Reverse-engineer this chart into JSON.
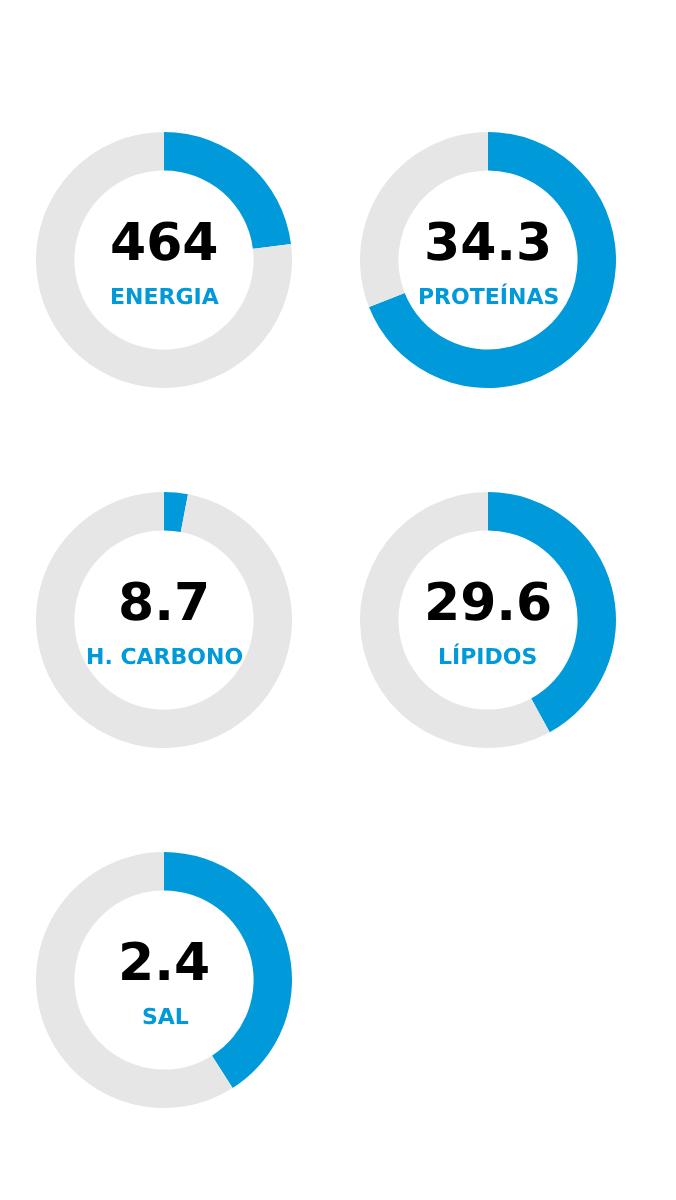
{
  "chart_data": [
    {
      "type": "donut",
      "categories": [
        null,
        null
      ],
      "values": [
        23,
        77
      ],
      "colors": [
        "#009ada",
        "#e6e6e6"
      ],
      "annotations": [
        "464",
        "ENERGIA"
      ]
    },
    {
      "type": "donut",
      "categories": [
        null,
        null
      ],
      "values": [
        69,
        31
      ],
      "colors": [
        "#009ada",
        "#e6e6e6"
      ],
      "annotations": [
        "34.3",
        "PROTEÍNAS"
      ]
    },
    {
      "type": "donut",
      "categories": [
        null,
        null
      ],
      "values": [
        3,
        97
      ],
      "colors": [
        "#009ada",
        "#e6e6e6"
      ],
      "annotations": [
        "8.7",
        "H. CARBONO"
      ]
    },
    {
      "type": "donut",
      "categories": [
        null,
        null
      ],
      "values": [
        42,
        58
      ],
      "colors": [
        "#009ada",
        "#e6e6e6"
      ],
      "annotations": [
        "29.6",
        "LÍPIDOS"
      ]
    },
    {
      "type": "donut",
      "categories": [
        null,
        null
      ],
      "values": [
        41,
        59
      ],
      "colors": [
        "#009ada",
        "#e6e6e6"
      ],
      "annotations": [
        "2.4",
        "SAL"
      ]
    }
  ]
}
